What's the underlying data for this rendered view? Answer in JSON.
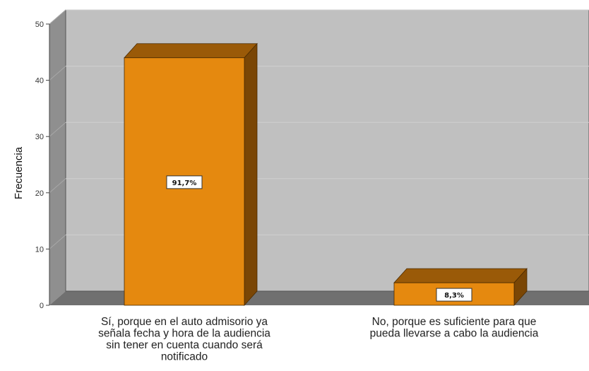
{
  "chart_data": {
    "type": "bar",
    "categories": [
      [
        "Sí, porque en el auto admisorio ya",
        "señala fecha y hora de la audiencia",
        "sin tener en cuenta cuando será",
        "notificado"
      ],
      [
        "No, porque es suficiente para que",
        "pueda llevarse a cabo la audiencia"
      ]
    ],
    "values": [
      44,
      4
    ],
    "percent_labels": [
      "91,7%",
      "8,3%"
    ],
    "ylabel": "Frecuencia",
    "xlabel": "",
    "ylim": [
      0,
      50
    ],
    "yticks": [
      0,
      10,
      20,
      30,
      40,
      50
    ],
    "grid": true,
    "style": "3d",
    "colors": {
      "bar_front": "#E5890F",
      "bar_top": "#9A5A08",
      "bar_side": "#7A4605",
      "plot_back": "#C0C0C0",
      "plot_wall": "#8F8F8F",
      "plot_floor": "#707070",
      "grid": "#D0D0D0"
    }
  }
}
